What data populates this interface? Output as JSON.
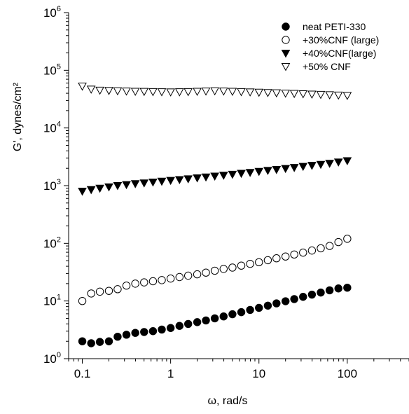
{
  "chart_data": {
    "type": "scatter",
    "xlabel": "ω, rad/s",
    "ylabel": "G', dynes/cm²",
    "xscale": "log",
    "yscale": "log",
    "xlim": [
      0.07,
      500
    ],
    "ylim": [
      1,
      1000000
    ],
    "xticks": [
      0.1,
      1,
      10,
      100
    ],
    "xtick_labels": [
      "0.1",
      "1",
      "10",
      "100"
    ],
    "yticks": [
      1,
      10,
      100,
      1000,
      10000,
      100000,
      1000000
    ],
    "ytick_labels": [
      {
        "base": "10",
        "exp": "0"
      },
      {
        "base": "10",
        "exp": "1"
      },
      {
        "base": "10",
        "exp": "2"
      },
      {
        "base": "10",
        "exp": "3"
      },
      {
        "base": "10",
        "exp": "4"
      },
      {
        "base": "10",
        "exp": "5"
      },
      {
        "base": "10",
        "exp": "6"
      }
    ],
    "grid": false,
    "legend_position": "top-right",
    "x": [
      0.1,
      0.126,
      0.158,
      0.2,
      0.251,
      0.316,
      0.398,
      0.501,
      0.631,
      0.794,
      1.0,
      1.26,
      1.58,
      2.0,
      2.51,
      3.16,
      3.98,
      5.01,
      6.31,
      7.94,
      10.0,
      12.6,
      15.8,
      20.0,
      25.1,
      31.6,
      39.8,
      50.1,
      63.1,
      79.4,
      100.0
    ],
    "series": [
      {
        "name": "neat PETI-330",
        "marker": "filled-circle",
        "values": [
          2.0,
          1.85,
          1.95,
          2.0,
          2.4,
          2.6,
          2.8,
          2.9,
          3.0,
          3.2,
          3.4,
          3.7,
          4.0,
          4.3,
          4.6,
          5.0,
          5.4,
          5.9,
          6.4,
          7.0,
          7.6,
          8.3,
          9.1,
          9.9,
          10.8,
          11.8,
          12.9,
          14.0,
          15.3,
          16.5,
          17.0
        ]
      },
      {
        "name": "+30%CNF (large)",
        "marker": "open-circle",
        "values": [
          10.0,
          13.5,
          14.5,
          15.0,
          16.0,
          18.5,
          20.0,
          21.0,
          22.0,
          23.0,
          24.5,
          26.0,
          27.5,
          29.0,
          31.0,
          33.5,
          36.0,
          38.0,
          41.0,
          44.0,
          47.0,
          51.0,
          55.0,
          59.0,
          64.0,
          69.0,
          75.0,
          82.0,
          90.0,
          105.0,
          120.0
        ]
      },
      {
        "name": "+40%CNF(large)",
        "marker": "filled-triangle-down",
        "values": [
          800,
          850,
          900,
          950,
          1000,
          1040,
          1080,
          1110,
          1150,
          1190,
          1230,
          1270,
          1310,
          1360,
          1410,
          1460,
          1510,
          1570,
          1630,
          1690,
          1760,
          1830,
          1900,
          1980,
          2060,
          2150,
          2240,
          2330,
          2430,
          2560,
          2700
        ]
      },
      {
        "name": "+50% CNF",
        "marker": "open-triangle-down",
        "values": [
          53000,
          47000,
          45000,
          44500,
          44000,
          43500,
          43000,
          42800,
          42500,
          42300,
          42000,
          42200,
          42500,
          43000,
          43500,
          44000,
          43500,
          43000,
          42500,
          42000,
          41500,
          41000,
          40500,
          40000,
          39500,
          39000,
          38500,
          38000,
          37500,
          37000,
          36500
        ]
      }
    ]
  }
}
